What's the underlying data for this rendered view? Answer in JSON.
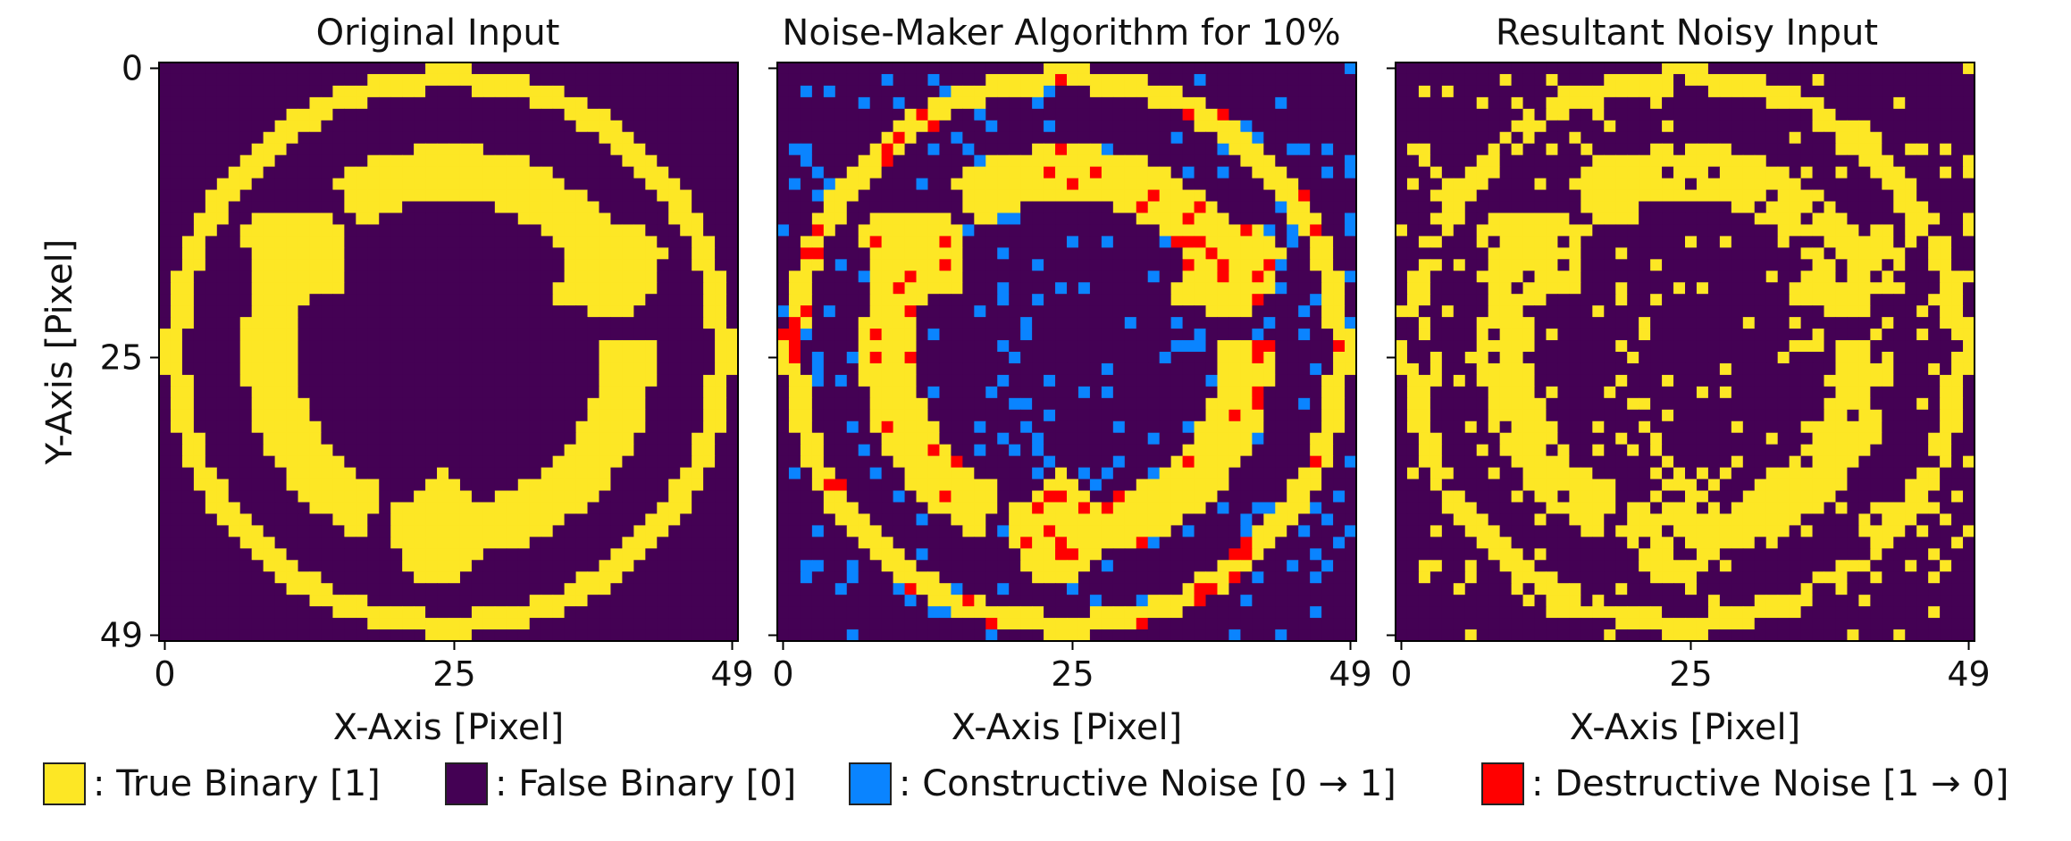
{
  "chart_data": [
    {
      "type": "heatmap",
      "title": "Original Input",
      "xlabel": "X-Axis [Pixel]",
      "ylabel": "Y-Axis [Pixel]",
      "grid_size": 50,
      "xticks": [
        0,
        25,
        49
      ],
      "yticks": [
        0,
        25,
        49
      ],
      "xlim": [
        0,
        49
      ],
      "ylim": [
        49,
        0
      ],
      "pattern": "ring with three curved arrows, binary values 1 (true) on 0 (false) background"
    },
    {
      "type": "heatmap",
      "title": "Noise-Maker Algorithm for 10%",
      "xlabel": "X-Axis [Pixel]",
      "ylabel": "",
      "grid_size": 50,
      "xticks": [
        0,
        25,
        49
      ],
      "xlim": [
        0,
        49
      ],
      "noise_rate_percent": 10,
      "pattern": "original input overlaid with constructive (0 to 1) and destructive (1 to 0) noise pixels"
    },
    {
      "type": "heatmap",
      "title": "Resultant Noisy Input",
      "xlabel": "X-Axis [Pixel]",
      "ylabel": "",
      "grid_size": 50,
      "xticks": [
        0,
        25,
        49
      ],
      "xlim": [
        0,
        49
      ],
      "pattern": "original input with noise applied"
    }
  ],
  "legend": [
    {
      "label": ": True Binary [1]",
      "color": "#fde725"
    },
    {
      "label": ": False Binary [0]",
      "color": "#440154"
    },
    {
      "label": ": Constructive Noise [0 → 1]",
      "color": "#0a84ff"
    },
    {
      "label": ": Destructive Noise [1 → 0]",
      "color": "#ff0000"
    }
  ],
  "colors": {
    "true": "#fde725",
    "false": "#440154",
    "constructive": "#0a84ff",
    "destructive": "#ff0000"
  }
}
